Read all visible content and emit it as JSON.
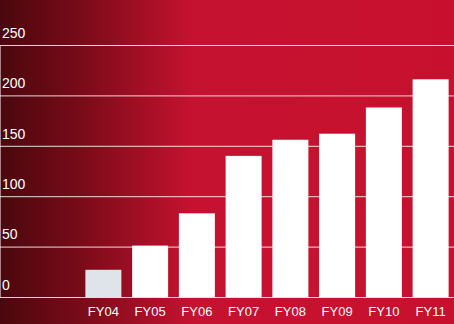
{
  "chart_data": {
    "type": "bar",
    "categories": [
      "FY04",
      "FY05",
      "FY06",
      "FY07",
      "FY08",
      "FY09",
      "FY10",
      "FY11"
    ],
    "values": [
      27,
      51,
      83,
      140,
      156,
      162,
      188,
      216
    ],
    "colors": [
      "#dfe3ea",
      "#ffffff",
      "#ffffff",
      "#ffffff",
      "#ffffff",
      "#ffffff",
      "#ffffff",
      "#ffffff"
    ],
    "ylim": [
      0,
      250
    ],
    "yticks": [
      0,
      50,
      100,
      150,
      200,
      250
    ],
    "grid": true
  }
}
